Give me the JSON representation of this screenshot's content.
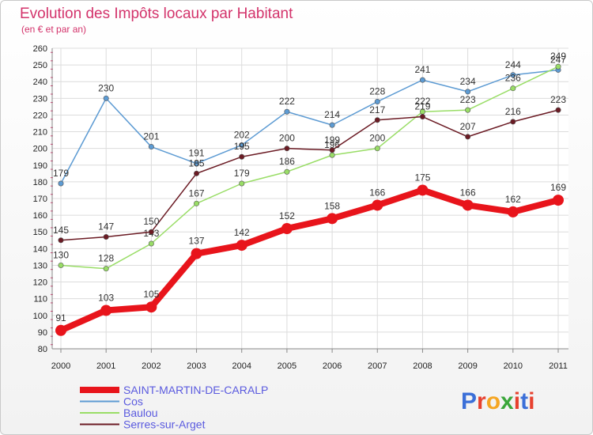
{
  "chart_data": {
    "type": "line",
    "title": "Evolution des Impôts locaux par Habitant",
    "subtitle": "(en € et par an)",
    "x": [
      "2000",
      "2001",
      "2002",
      "2003",
      "2004",
      "2005",
      "2006",
      "2007",
      "2008",
      "2009",
      "2010",
      "2011"
    ],
    "ylim": [
      80,
      260
    ],
    "ytick_step": 10,
    "series": [
      {
        "name": "SAINT-MARTIN-DE-CARALP",
        "color": "#e8141b",
        "values": [
          91,
          103,
          105,
          137,
          142,
          152,
          158,
          166,
          175,
          166,
          162,
          169
        ]
      },
      {
        "name": "Cos",
        "color": "#5d9bd3",
        "values": [
          179,
          230,
          201,
          191,
          202,
          222,
          214,
          228,
          241,
          234,
          244,
          247
        ]
      },
      {
        "name": "Baulou",
        "color": "#99dd66",
        "values": [
          130,
          128,
          143,
          167,
          179,
          186,
          196,
          200,
          222,
          223,
          236,
          249
        ]
      },
      {
        "name": "Serres-sur-Arget",
        "color": "#6b1b24",
        "values": [
          145,
          147,
          150,
          185,
          195,
          200,
          199,
          217,
          219,
          207,
          216,
          223
        ]
      }
    ]
  },
  "branding": {
    "logo": "Proxiti"
  }
}
